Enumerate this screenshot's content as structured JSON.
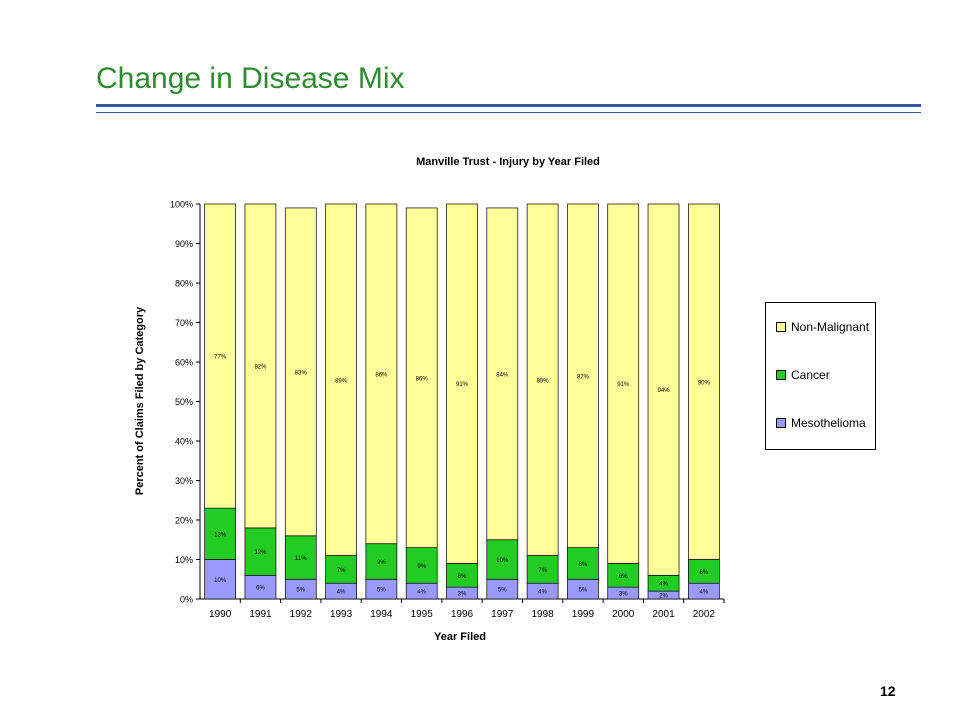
{
  "slide": {
    "title": "Change in Disease Mix",
    "page_number": "12"
  },
  "colors": {
    "title": "#2e8b2e",
    "rule": "#3355aa",
    "non_malignant": "#ffff99",
    "cancer": "#22cc22",
    "mesothelioma": "#9999ff"
  },
  "chart_data": {
    "type": "bar",
    "stacked": true,
    "title": "Manville Trust - Injury by Year Filed",
    "xlabel": "Year Filed",
    "ylabel": "Percent of Claims Filed by Category",
    "ylim": [
      0,
      100
    ],
    "y_ticks": [
      "0%",
      "10%",
      "20%",
      "30%",
      "40%",
      "50%",
      "60%",
      "70%",
      "80%",
      "90%",
      "100%"
    ],
    "categories": [
      "1990",
      "1991",
      "1992",
      "1993",
      "1994",
      "1995",
      "1996",
      "1997",
      "1998",
      "1999",
      "2000",
      "2001",
      "2002"
    ],
    "series": [
      {
        "name": "Mesothelioma",
        "values": [
          10,
          6,
          5,
          4,
          5,
          4,
          3,
          5,
          4,
          5,
          3,
          2,
          4
        ],
        "labels": [
          "10%",
          "6%",
          "5%",
          "4%",
          "5%",
          "4%",
          "3%",
          "5%",
          "4%",
          "5%",
          "3%",
          "2%",
          "4%"
        ]
      },
      {
        "name": "Cancer",
        "values": [
          13,
          12,
          11,
          7,
          9,
          9,
          6,
          10,
          7,
          8,
          6,
          4,
          6
        ],
        "labels": [
          "13%",
          "12%",
          "11%",
          "7%",
          "9%",
          "9%",
          "6%",
          "10%",
          "7%",
          "8%",
          "6%",
          "4%",
          "6%"
        ]
      },
      {
        "name": "Non-Malignant",
        "values": [
          77,
          82,
          83,
          89,
          86,
          86,
          91,
          84,
          89,
          87,
          91,
          94,
          90
        ],
        "labels": [
          "77%",
          "82%",
          "83%",
          "89%",
          "86%",
          "86%",
          "91%",
          "84%",
          "89%",
          "87%",
          "91%",
          "94%",
          "90%"
        ]
      }
    ],
    "legend": {
      "position": "right",
      "entries": [
        "Non-Malignant",
        "Cancer",
        "Mesothelioma"
      ]
    },
    "grid": false
  }
}
